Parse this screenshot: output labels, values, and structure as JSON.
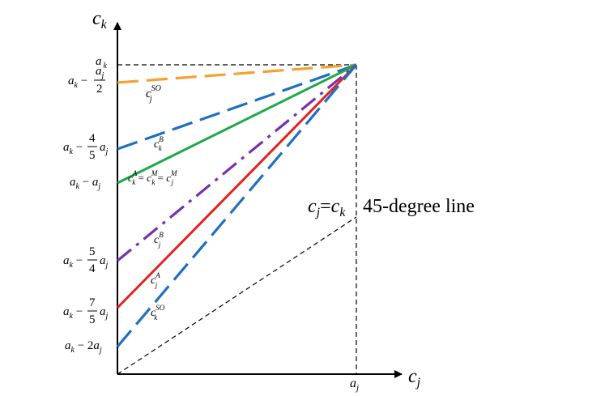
{
  "axes": {
    "y_label": {
      "base": "c",
      "sub": "k"
    },
    "x_label": {
      "base": "c",
      "sub": "j"
    }
  },
  "y_ticks": {
    "ak": {
      "base": "a",
      "sub": "k"
    },
    "ak_minus_half_aj": {
      "lead": "a",
      "lead_sub": "k",
      "op": " − ",
      "num": "a",
      "num_sub": "j",
      "den": "2"
    },
    "ak_minus_4_5_aj": {
      "lead": "a",
      "lead_sub": "k",
      "op": " − ",
      "num": "4",
      "den": "5",
      "tail": "a",
      "tail_sub": "j"
    },
    "ak_minus_aj": {
      "lead": "a",
      "lead_sub": "k",
      "op": " − ",
      "tail": "a",
      "tail_sub": "j"
    },
    "ak_minus_5_4_aj": {
      "lead": "a",
      "lead_sub": "k",
      "op": " − ",
      "num": "5",
      "den": "4",
      "tail": "a",
      "tail_sub": "j"
    },
    "ak_minus_7_5_aj": {
      "lead": "a",
      "lead_sub": "k",
      "op": " − ",
      "num": "7",
      "den": "5",
      "tail": "a",
      "tail_sub": "j"
    },
    "ak_minus_2aj": {
      "lead": "a",
      "lead_sub": "k",
      "op": " − 2",
      "tail": "a",
      "tail_sub": "j"
    }
  },
  "x_ticks": {
    "aj": {
      "base": "a",
      "sub": "j"
    }
  },
  "curves": {
    "cj_so": {
      "base": "c",
      "sub": "j",
      "sup": "SO",
      "color": "#f5a030"
    },
    "ck_b": {
      "base": "c",
      "sub": "k",
      "sup": "B",
      "color": "#1f6fc1"
    },
    "equal_label": {
      "t1": "c",
      "t1_sub": "k",
      "t1_sup": "A",
      "eq1": " = ",
      "t2": "c",
      "t2_sub": "k",
      "t2_sup": "M",
      "eq2": " = ",
      "t3": "c",
      "t3_sub": "j",
      "t3_sup": "M",
      "color": "#1fa84a"
    },
    "cj_b": {
      "base": "c",
      "sub": "j",
      "sup": "B",
      "color": "#7a2fb0"
    },
    "cj_a": {
      "base": "c",
      "sub": "j",
      "sup": "A",
      "color": "#e5201c"
    },
    "ck_so": {
      "base": "c",
      "sub": "k",
      "sup": "SO",
      "color": "#1f6fc1"
    }
  },
  "annotation": {
    "lhs": "c",
    "lhs_sub": "j",
    "eq": "=",
    "rhs": "c",
    "rhs_sub": "k",
    "text": "45-degree line"
  }
}
